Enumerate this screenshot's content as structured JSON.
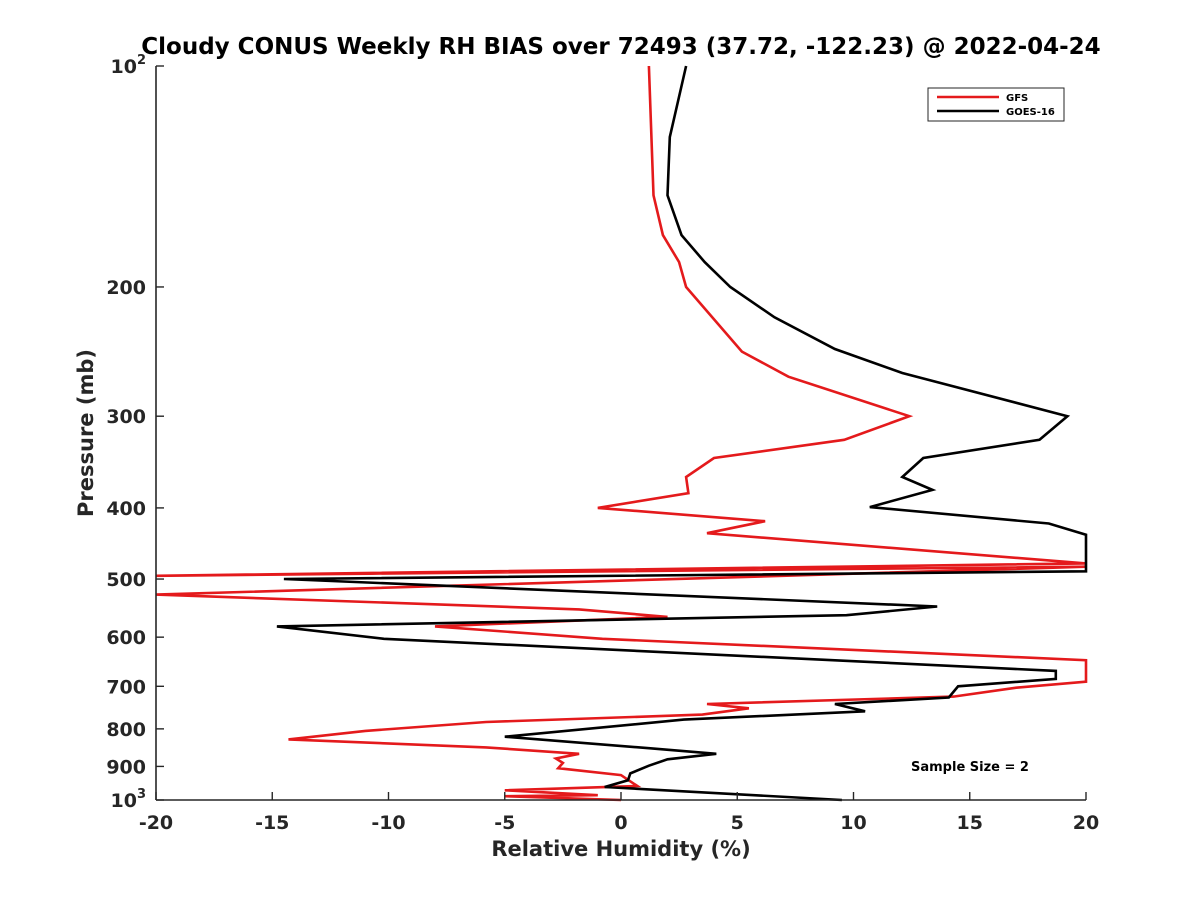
{
  "chart_data": {
    "type": "line",
    "title": "Cloudy CONUS Weekly RH BIAS over 72493 (37.72, -122.23) @ 2022-04-24",
    "xlabel": "Relative Humidity (%)",
    "ylabel": "Pressure (mb)",
    "xlim": [
      -20,
      20
    ],
    "ylim": [
      100,
      1000
    ],
    "y_scale": "log",
    "y_reversed": true,
    "xticks": [
      -20,
      -15,
      -10,
      -5,
      0,
      5,
      10,
      15,
      20
    ],
    "yticks": [
      {
        "value": 100,
        "base": "10",
        "exp": "2",
        "label": ""
      },
      {
        "value": 200,
        "label": "200"
      },
      {
        "value": 300,
        "label": "300"
      },
      {
        "value": 400,
        "label": "400"
      },
      {
        "value": 500,
        "label": "500"
      },
      {
        "value": 600,
        "label": "600"
      },
      {
        "value": 700,
        "label": "700"
      },
      {
        "value": 800,
        "label": "800"
      },
      {
        "value": 900,
        "label": "900"
      },
      {
        "value": 1000,
        "base": "10",
        "exp": "3",
        "label": ""
      }
    ],
    "grid": false,
    "legend_position": "top-right",
    "annotation": "Sample Size = 2",
    "series": [
      {
        "name": "GFS",
        "color": "#e41a1c",
        "points": [
          {
            "x": 1.2,
            "y": 100
          },
          {
            "x": 1.4,
            "y": 150
          },
          {
            "x": 1.8,
            "y": 170
          },
          {
            "x": 2.5,
            "y": 185
          },
          {
            "x": 2.8,
            "y": 200
          },
          {
            "x": 5.2,
            "y": 245
          },
          {
            "x": 7.2,
            "y": 265
          },
          {
            "x": 12.4,
            "y": 300
          },
          {
            "x": 9.6,
            "y": 323
          },
          {
            "x": 4.0,
            "y": 342
          },
          {
            "x": 2.8,
            "y": 363
          },
          {
            "x": 2.9,
            "y": 382
          },
          {
            "x": -1.0,
            "y": 400
          },
          {
            "x": 6.2,
            "y": 417
          },
          {
            "x": 3.7,
            "y": 433
          },
          {
            "x": 20.0,
            "y": 476
          },
          {
            "x": -20.0,
            "y": 495
          },
          {
            "x": 20.0,
            "y": 481
          },
          {
            "x": -20.0,
            "y": 525
          },
          {
            "x": -1.8,
            "y": 550
          },
          {
            "x": 2.0,
            "y": 563
          },
          {
            "x": -8.0,
            "y": 580
          },
          {
            "x": -0.8,
            "y": 603
          },
          {
            "x": 20.0,
            "y": 645
          },
          {
            "x": 20.0,
            "y": 690
          },
          {
            "x": 17.0,
            "y": 703
          },
          {
            "x": 14.3,
            "y": 723
          },
          {
            "x": 3.7,
            "y": 740
          },
          {
            "x": 5.5,
            "y": 750
          },
          {
            "x": 3.5,
            "y": 765
          },
          {
            "x": -5.8,
            "y": 783
          },
          {
            "x": -11.0,
            "y": 805
          },
          {
            "x": -14.3,
            "y": 827
          },
          {
            "x": -5.8,
            "y": 848
          },
          {
            "x": -1.8,
            "y": 865
          },
          {
            "x": -2.8,
            "y": 878
          },
          {
            "x": -2.5,
            "y": 890
          },
          {
            "x": -2.7,
            "y": 905
          },
          {
            "x": 0.0,
            "y": 925
          },
          {
            "x": 0.7,
            "y": 957
          },
          {
            "x": -5.0,
            "y": 970
          },
          {
            "x": -1.0,
            "y": 985
          },
          {
            "x": -5.0,
            "y": 988
          },
          {
            "x": 0.0,
            "y": 1000
          }
        ]
      },
      {
        "name": "GOES-16",
        "color": "#000000",
        "points": [
          {
            "x": 2.8,
            "y": 100
          },
          {
            "x": 2.1,
            "y": 125
          },
          {
            "x": 2.0,
            "y": 150
          },
          {
            "x": 2.6,
            "y": 170
          },
          {
            "x": 3.6,
            "y": 185
          },
          {
            "x": 4.7,
            "y": 200
          },
          {
            "x": 6.6,
            "y": 220
          },
          {
            "x": 9.2,
            "y": 243
          },
          {
            "x": 12.1,
            "y": 262
          },
          {
            "x": 19.2,
            "y": 300
          },
          {
            "x": 18.0,
            "y": 323
          },
          {
            "x": 13.0,
            "y": 342
          },
          {
            "x": 12.1,
            "y": 363
          },
          {
            "x": 13.4,
            "y": 378
          },
          {
            "x": 10.7,
            "y": 399
          },
          {
            "x": 18.4,
            "y": 420
          },
          {
            "x": 20.0,
            "y": 435
          },
          {
            "x": 20.0,
            "y": 488
          },
          {
            "x": -14.5,
            "y": 500
          },
          {
            "x": 13.6,
            "y": 545
          },
          {
            "x": 9.7,
            "y": 560
          },
          {
            "x": -14.8,
            "y": 580
          },
          {
            "x": -10.2,
            "y": 603
          },
          {
            "x": 18.7,
            "y": 667
          },
          {
            "x": 18.7,
            "y": 684
          },
          {
            "x": 14.5,
            "y": 700
          },
          {
            "x": 14.1,
            "y": 725
          },
          {
            "x": 9.2,
            "y": 740
          },
          {
            "x": 10.5,
            "y": 757
          },
          {
            "x": 2.7,
            "y": 777
          },
          {
            "x": -5.0,
            "y": 820
          },
          {
            "x": 1.2,
            "y": 850
          },
          {
            "x": 4.1,
            "y": 865
          },
          {
            "x": 2.0,
            "y": 880
          },
          {
            "x": 1.2,
            "y": 898
          },
          {
            "x": 0.4,
            "y": 920
          },
          {
            "x": 0.3,
            "y": 940
          },
          {
            "x": -0.7,
            "y": 960
          },
          {
            "x": 9.5,
            "y": 1000
          }
        ]
      }
    ]
  }
}
